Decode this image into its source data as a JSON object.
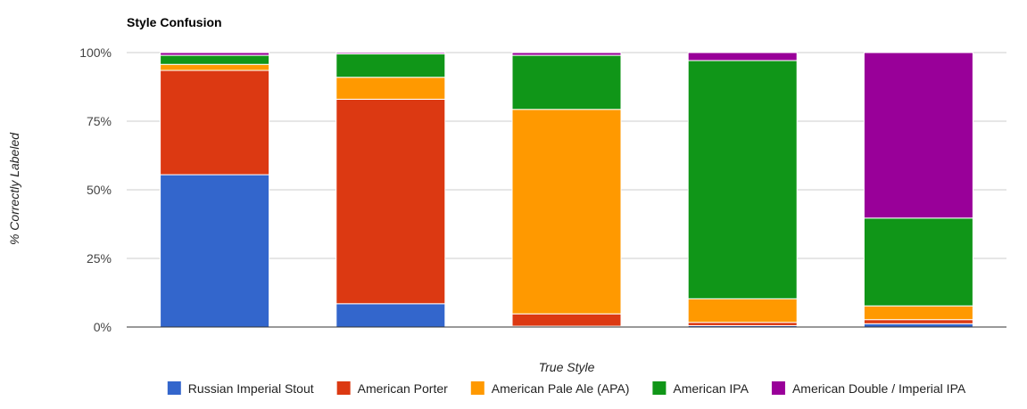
{
  "chart_data": {
    "type": "bar",
    "stacked": true,
    "title": "Style Confusion",
    "xlabel": "True Style",
    "ylabel": "% Correctly Labeled",
    "ylim": [
      0,
      100
    ],
    "ytick_values": [
      0,
      25,
      50,
      75,
      100
    ],
    "ytick_labels": [
      "0%",
      "25%",
      "50%",
      "75%",
      "100%"
    ],
    "grid": true,
    "legend_position": "bottom",
    "categories": [
      "",
      "",
      "",
      "",
      ""
    ],
    "series": [
      {
        "name": "Russian Imperial Stout",
        "color": "#3366cc",
        "values": [
          55.5,
          8.5,
          0.3,
          0.5,
          1.2
        ]
      },
      {
        "name": "American Porter",
        "color": "#dc3912",
        "values": [
          38.0,
          74.5,
          4.5,
          1.2,
          1.5
        ]
      },
      {
        "name": "American Pale Ale (APA)",
        "color": "#ff9900",
        "values": [
          2.2,
          8.0,
          74.5,
          8.6,
          5.0
        ]
      },
      {
        "name": "American IPA",
        "color": "#109618",
        "values": [
          3.3,
          8.5,
          19.7,
          86.8,
          32.0
        ]
      },
      {
        "name": "American Double / Imperial IPA",
        "color": "#990099",
        "values": [
          1.0,
          0.5,
          1.0,
          2.9,
          60.3
        ]
      }
    ]
  }
}
